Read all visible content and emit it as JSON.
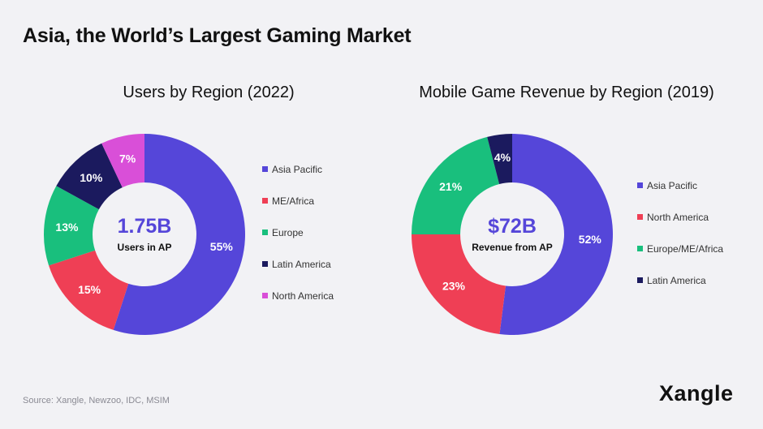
{
  "page_title": "Asia, the World’s Largest Gaming Market",
  "source": "Source: Xangle, Newzoo, IDC, MSIM",
  "logo_text": "Xangle",
  "chart_data": [
    {
      "type": "pie",
      "title": "Users by Region (2022)",
      "center_value": "1.75B",
      "center_label": "Users in AP",
      "categories": [
        "Asia Pacific",
        "ME/Africa",
        "Europe",
        "Latin America",
        "North America"
      ],
      "values": [
        55,
        15,
        13,
        10,
        7
      ],
      "labels": [
        "55%",
        "15%",
        "13%",
        "10%",
        "7%"
      ],
      "colors": [
        "#5546d9",
        "#ef3f55",
        "#19bf7d",
        "#1b1a5e",
        "#d94fd8"
      ]
    },
    {
      "type": "pie",
      "title": "Mobile Game Revenue by Region (2019)",
      "center_value": "$72B",
      "center_label": "Revenue from AP",
      "categories": [
        "Asia Pacific",
        "North America",
        "Europe/ME/Africa",
        "Latin America"
      ],
      "values": [
        52,
        23,
        21,
        4
      ],
      "labels": [
        "52%",
        "23%",
        "21%",
        "4%"
      ],
      "colors": [
        "#5546d9",
        "#ef3f55",
        "#19bf7d",
        "#1b1a5e"
      ]
    }
  ]
}
